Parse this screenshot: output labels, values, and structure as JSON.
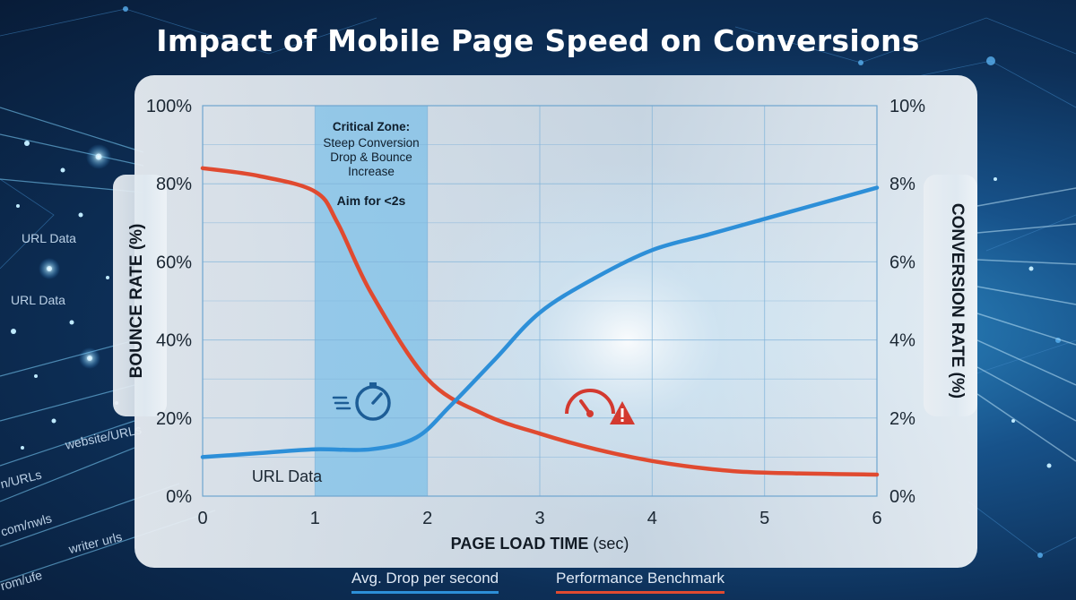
{
  "title": "Impact of Mobile Page Speed on Conversions",
  "decor_labels": [
    "URL Data",
    "URL Data",
    "website/URLs",
    "n/URLs",
    "com/nwls",
    "writer urls",
    "rom/ufe"
  ],
  "legend": [
    {
      "label": "Avg. Drop per second",
      "color": "#2d8fd8"
    },
    {
      "label": "Performance Benchmark",
      "color": "#e04a30"
    }
  ],
  "chart_data": {
    "type": "line",
    "title": "Impact of Mobile Page Speed on Conversions",
    "xlabel": "PAGE LOAD TIME",
    "xlabel_unit": "(sec)",
    "ylabel_left": "BOUNCE RATE (%)",
    "ylabel_right": "CONVERSION RATE (%)",
    "xlim": [
      0,
      6
    ],
    "ylim_left": [
      0,
      100
    ],
    "ylim_right": [
      0,
      10
    ],
    "x_ticks": [
      "0",
      "1",
      "2",
      "3",
      "4",
      "5",
      "6"
    ],
    "y_ticks_left": [
      "0%",
      "20%",
      "40%",
      "60%",
      "80%",
      "100%"
    ],
    "y_ticks_right": [
      "0%",
      "2%",
      "4%",
      "6%",
      "8%",
      "10%"
    ],
    "grid": true,
    "series": [
      {
        "name": "Performance Benchmark",
        "axis": "left",
        "color": "#e04a30",
        "x": [
          0,
          0.5,
          1.0,
          1.2,
          1.5,
          2.0,
          2.5,
          3.0,
          3.5,
          4.0,
          4.5,
          5.0,
          6.0
        ],
        "y": [
          84,
          82,
          78,
          70,
          52,
          30,
          21,
          16,
          12,
          9,
          7,
          6,
          5.5
        ]
      },
      {
        "name": "Avg. Drop per second",
        "axis": "right",
        "color": "#2d8fd8",
        "x": [
          0,
          0.5,
          1.0,
          1.5,
          1.9,
          2.2,
          2.6,
          3.0,
          3.5,
          4.0,
          4.5,
          5.0,
          5.5,
          6.0
        ],
        "y": [
          1.0,
          1.1,
          1.2,
          1.2,
          1.5,
          2.3,
          3.5,
          4.7,
          5.6,
          6.3,
          6.7,
          7.1,
          7.5,
          7.9
        ]
      }
    ],
    "highlight_band": {
      "x_range": [
        1,
        2
      ],
      "heading": "Critical Zone:",
      "text": "Steep Conversion Drop & Bounce Increase",
      "note": "Aim for <2s"
    },
    "annotations": [
      {
        "text": "URL Data",
        "x": 0.75,
        "y_left": 5
      }
    ]
  }
}
